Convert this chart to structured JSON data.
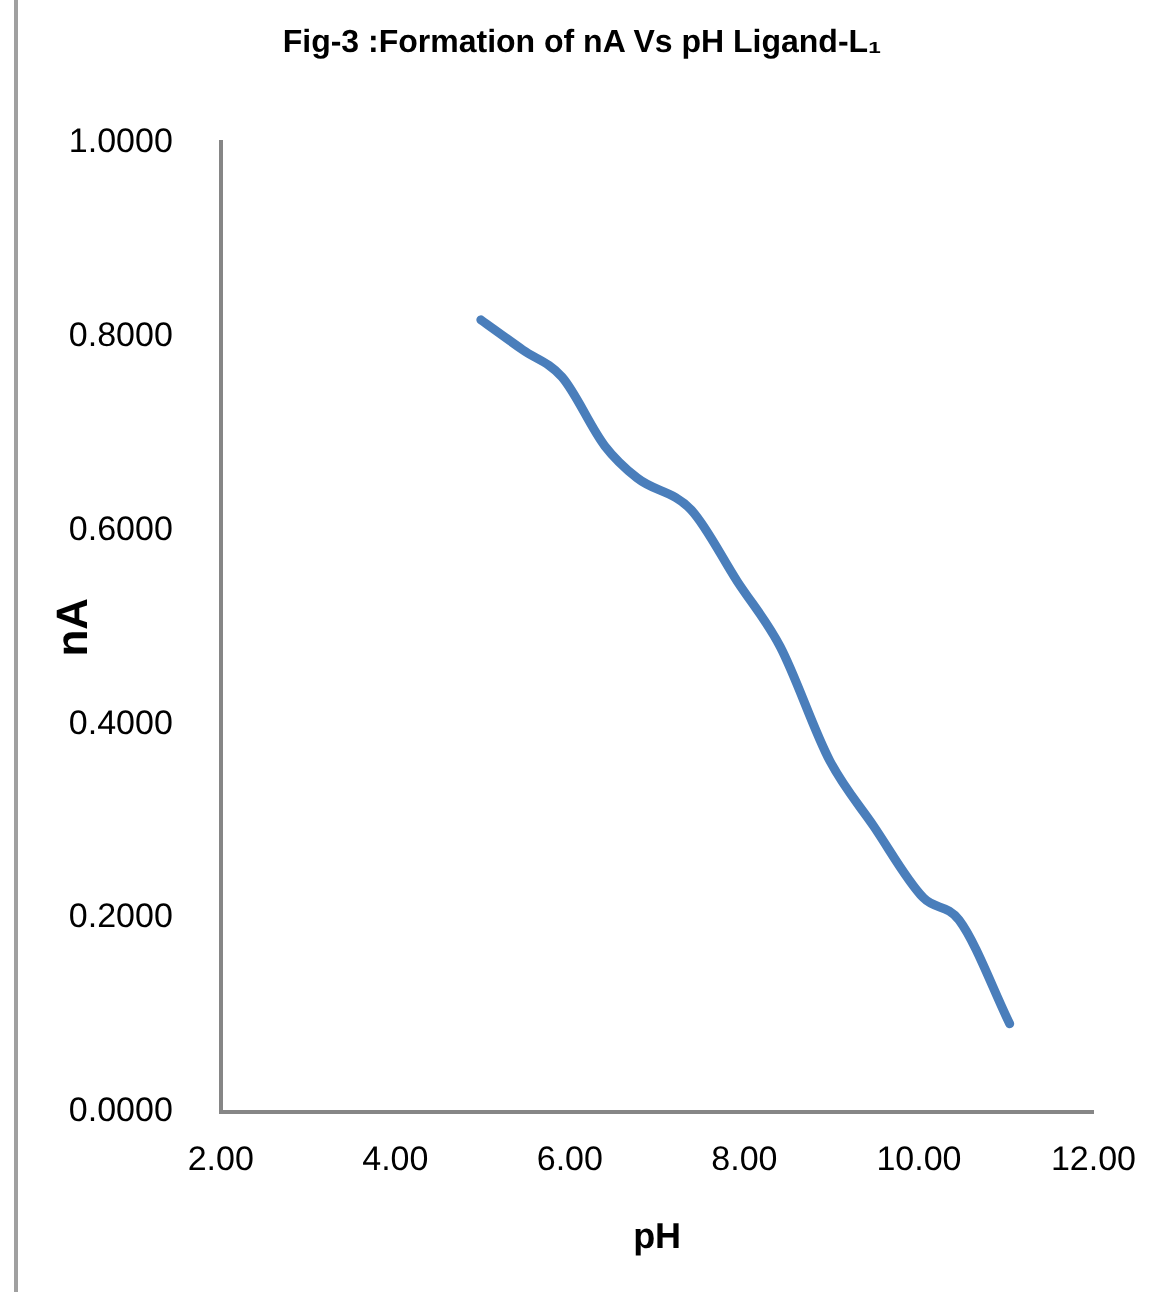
{
  "chart_data": {
    "type": "line",
    "title": "Fig-3 :Formation of nA Vs pH Ligand-L₁",
    "xlabel": "pH",
    "ylabel": "nA",
    "x": [
      4.98,
      5.46,
      5.91,
      6.4,
      6.77,
      7.39,
      7.92,
      8.41,
      8.98,
      9.48,
      10.05,
      10.46,
      11.04
    ],
    "series": [
      {
        "color": "#4a7ebb",
        "values": [
          0.817,
          0.786,
          0.758,
          0.687,
          0.654,
          0.621,
          0.547,
          0.48,
          0.362,
          0.295,
          0.221,
          0.198,
          0.091
        ]
      }
    ],
    "xlim": [
      2,
      12
    ],
    "xticks": [
      {
        "value": 2,
        "label": "2.00"
      },
      {
        "value": 4,
        "label": "4.00"
      },
      {
        "value": 6,
        "label": "6.00"
      },
      {
        "value": 8,
        "label": "8.00"
      },
      {
        "value": 10,
        "label": "10.00"
      },
      {
        "value": 12,
        "label": "12.00"
      }
    ],
    "ylim": [
      0,
      1
    ],
    "yticks": [
      {
        "value": 0,
        "label": "0.0000"
      },
      {
        "value": 0.2,
        "label": "0.2000"
      },
      {
        "value": 0.4,
        "label": "0.4000"
      },
      {
        "value": 0.6,
        "label": "0.6000"
      },
      {
        "value": 0.8,
        "label": "0.8000"
      },
      {
        "value": 1,
        "label": "1.0000"
      }
    ],
    "grid": false,
    "legend": false,
    "marker": "none",
    "line_style": "solid"
  }
}
